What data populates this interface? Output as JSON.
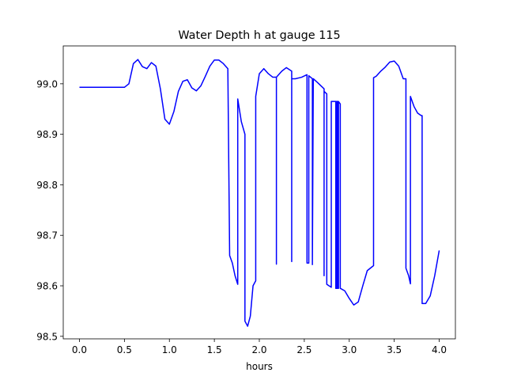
{
  "chart_data": {
    "type": "line",
    "title": "Water Depth h at gauge 115",
    "xlabel": "hours",
    "ylabel": "",
    "xlim": [
      -0.18,
      4.18
    ],
    "ylim": [
      98.495,
      99.075
    ],
    "xticks": [
      0.0,
      0.5,
      1.0,
      1.5,
      2.0,
      2.5,
      3.0,
      3.5,
      4.0
    ],
    "xtick_labels": [
      "0.0",
      "0.5",
      "1.0",
      "1.5",
      "2.0",
      "2.5",
      "3.0",
      "3.5",
      "4.0"
    ],
    "yticks": [
      98.5,
      98.6,
      98.7,
      98.8,
      98.9,
      99.0
    ],
    "ytick_labels": [
      "98.5",
      "98.6",
      "98.7",
      "98.8",
      "98.9",
      "99.0"
    ],
    "grid": false,
    "series": [
      {
        "color": "#0000ff",
        "x": [
          0.0,
          0.2,
          0.4,
          0.5,
          0.55,
          0.6,
          0.65,
          0.7,
          0.75,
          0.8,
          0.85,
          0.9,
          0.95,
          1.0,
          1.05,
          1.1,
          1.15,
          1.2,
          1.25,
          1.3,
          1.35,
          1.4,
          1.45,
          1.5,
          1.55,
          1.6,
          1.65,
          1.67,
          1.67,
          1.7,
          1.73,
          1.76,
          1.76,
          1.8,
          1.84,
          1.84,
          1.87,
          1.9,
          1.93,
          1.96,
          1.96,
          2.0,
          2.05,
          2.1,
          2.15,
          2.19,
          2.19,
          2.19,
          2.25,
          2.3,
          2.36,
          2.36,
          2.36,
          2.4,
          2.47,
          2.53,
          2.53,
          2.55,
          2.55,
          2.59,
          2.59,
          2.6,
          2.65,
          2.72,
          2.72,
          2.72,
          2.75,
          2.75,
          2.8,
          2.8,
          2.85,
          2.85,
          2.86,
          2.86,
          2.87,
          2.87,
          2.88,
          2.88,
          2.9,
          2.9,
          2.95,
          3.0,
          3.05,
          3.1,
          3.15,
          3.2,
          3.27,
          3.27,
          3.3,
          3.35,
          3.4,
          3.45,
          3.5,
          3.55,
          3.6,
          3.63,
          3.63,
          3.66,
          3.68,
          3.68,
          3.72,
          3.76,
          3.8,
          3.81,
          3.81,
          3.85,
          3.9,
          3.95,
          4.0
        ],
        "y": [
          98.993,
          98.993,
          98.993,
          98.993,
          99.0,
          99.04,
          99.048,
          99.034,
          99.03,
          99.042,
          99.035,
          98.99,
          98.93,
          98.92,
          98.945,
          98.985,
          99.005,
          99.008,
          98.992,
          98.986,
          98.996,
          99.015,
          99.035,
          99.047,
          99.047,
          99.04,
          99.03,
          98.66,
          98.66,
          98.645,
          98.62,
          98.603,
          98.97,
          98.925,
          98.9,
          98.53,
          98.52,
          98.54,
          98.6,
          98.61,
          98.975,
          99.02,
          99.03,
          99.02,
          99.013,
          99.013,
          98.643,
          99.013,
          99.025,
          99.032,
          99.025,
          98.648,
          99.01,
          99.01,
          99.013,
          99.018,
          98.645,
          98.645,
          99.016,
          99.01,
          98.642,
          99.01,
          99.002,
          98.99,
          98.62,
          98.985,
          98.98,
          98.603,
          98.597,
          98.965,
          98.965,
          98.595,
          98.595,
          98.965,
          98.965,
          98.595,
          98.595,
          98.965,
          98.96,
          98.595,
          98.59,
          98.575,
          98.562,
          98.568,
          98.6,
          98.63,
          98.64,
          99.012,
          99.015,
          99.025,
          99.033,
          99.043,
          99.045,
          99.035,
          99.01,
          99.01,
          98.635,
          98.62,
          98.604,
          98.975,
          98.955,
          98.942,
          98.937,
          98.937,
          98.565,
          98.565,
          98.58,
          98.62,
          98.67
        ]
      }
    ]
  }
}
